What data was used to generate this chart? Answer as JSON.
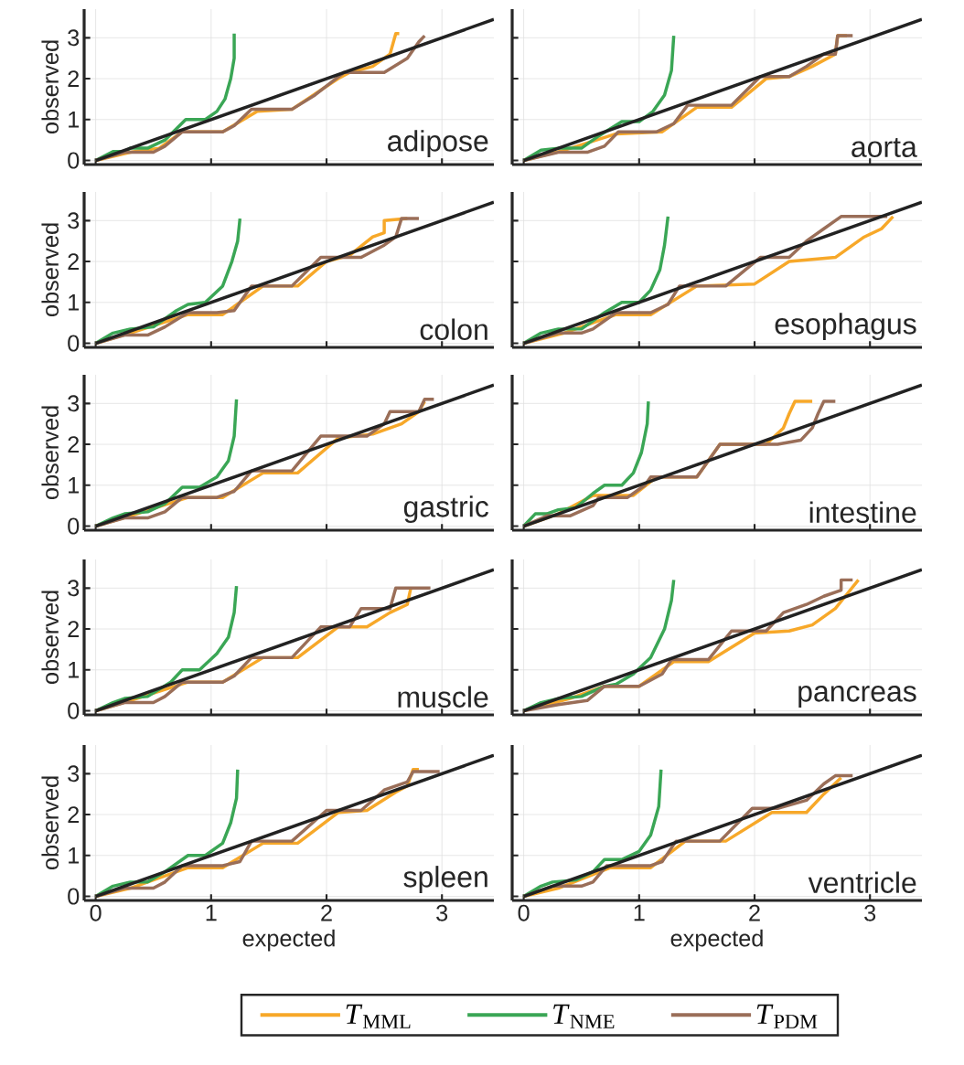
{
  "chart_data": [
    {
      "type": "line",
      "title": "adipose",
      "ylabel": "observed",
      "xlim": [
        -0.1,
        3.45
      ],
      "ylim": [
        -0.1,
        3.7
      ],
      "xticks": [
        0,
        1,
        2,
        3
      ],
      "yticks": [
        0,
        1,
        2,
        3
      ],
      "grid": true,
      "tick_labels": "y",
      "series": [
        {
          "color": "#f7a829",
          "x": [
            0,
            0.3,
            0.55,
            0.75,
            1.1,
            1.4,
            1.7,
            2.1,
            2.2,
            2.4,
            2.55,
            2.6,
            2.63
          ],
          "values": [
            0,
            0.2,
            0.3,
            0.7,
            0.7,
            1.2,
            1.25,
            2.0,
            2.15,
            2.3,
            2.6,
            3.1,
            3.1
          ]
        },
        {
          "color": "#3aa655",
          "x": [
            0,
            0.15,
            0.25,
            0.3,
            0.45,
            0.6,
            0.78,
            0.95,
            1.05,
            1.12,
            1.17,
            1.2,
            1.2
          ],
          "values": [
            0,
            0.22,
            0.22,
            0.3,
            0.3,
            0.5,
            1.0,
            1.0,
            1.2,
            1.5,
            2.0,
            2.5,
            3.1
          ]
        },
        {
          "color": "#9a6e58",
          "x": [
            0,
            0.25,
            0.5,
            0.6,
            0.75,
            1.1,
            1.2,
            1.35,
            1.7,
            1.9,
            2.15,
            2.5,
            2.7,
            2.8,
            2.85
          ],
          "values": [
            0,
            0.2,
            0.2,
            0.35,
            0.7,
            0.7,
            0.85,
            1.25,
            1.25,
            1.6,
            2.15,
            2.15,
            2.5,
            2.9,
            3.05
          ]
        },
        {
          "type": "line",
          "color": "#222222",
          "x": [
            0,
            3.45
          ],
          "values": [
            0,
            3.45
          ]
        }
      ]
    },
    {
      "type": "line",
      "title": "aorta",
      "xlim": [
        -0.1,
        3.45
      ],
      "ylim": [
        -0.1,
        3.7
      ],
      "xticks": [
        0,
        1,
        2,
        3
      ],
      "yticks": [
        0,
        1,
        2,
        3
      ],
      "grid": true,
      "tick_labels": false,
      "series": [
        {
          "color": "#f7a829",
          "x": [
            0,
            0.35,
            0.8,
            1.2,
            1.5,
            1.8,
            2.1,
            2.3,
            2.5,
            2.7,
            2.72,
            2.8
          ],
          "values": [
            0,
            0.25,
            0.65,
            0.7,
            1.3,
            1.3,
            2.0,
            2.05,
            2.3,
            2.6,
            3.05,
            3.05
          ]
        },
        {
          "color": "#3aa655",
          "x": [
            0,
            0.15,
            0.3,
            0.5,
            0.65,
            0.85,
            1.0,
            1.12,
            1.22,
            1.28,
            1.3
          ],
          "values": [
            0,
            0.25,
            0.3,
            0.3,
            0.6,
            0.95,
            0.95,
            1.2,
            1.6,
            2.2,
            3.05
          ]
        },
        {
          "color": "#9a6e58",
          "x": [
            0,
            0.3,
            0.55,
            0.7,
            0.82,
            1.15,
            1.3,
            1.42,
            1.8,
            2.05,
            2.3,
            2.45,
            2.6,
            2.7,
            2.72,
            2.85
          ],
          "values": [
            0,
            0.2,
            0.2,
            0.35,
            0.7,
            0.7,
            0.9,
            1.35,
            1.35,
            2.05,
            2.05,
            2.3,
            2.6,
            2.6,
            3.05,
            3.05
          ]
        },
        {
          "type": "line",
          "color": "#222222",
          "x": [
            0,
            3.45
          ],
          "values": [
            0,
            3.45
          ]
        }
      ]
    },
    {
      "type": "line",
      "title": "colon",
      "ylabel": "observed",
      "xlim": [
        -0.1,
        3.45
      ],
      "ylim": [
        -0.1,
        3.7
      ],
      "xticks": [
        0,
        1,
        2,
        3
      ],
      "yticks": [
        0,
        1,
        2,
        3
      ],
      "grid": true,
      "tick_labels": "y",
      "series": [
        {
          "color": "#f7a829",
          "x": [
            0,
            0.3,
            0.8,
            1.1,
            1.45,
            1.75,
            2.0,
            2.2,
            2.4,
            2.5,
            2.5,
            2.7
          ],
          "values": [
            0,
            0.25,
            0.7,
            0.7,
            1.4,
            1.4,
            2.0,
            2.15,
            2.6,
            2.7,
            3.0,
            3.05
          ]
        },
        {
          "color": "#3aa655",
          "x": [
            0,
            0.15,
            0.3,
            0.5,
            0.7,
            0.8,
            0.95,
            1.1,
            1.18,
            1.23,
            1.25
          ],
          "values": [
            0,
            0.25,
            0.35,
            0.4,
            0.8,
            0.95,
            1.0,
            1.4,
            2.0,
            2.5,
            3.05
          ]
        },
        {
          "color": "#9a6e58",
          "x": [
            0,
            0.25,
            0.45,
            0.6,
            0.8,
            1.05,
            1.2,
            1.35,
            1.7,
            1.95,
            2.3,
            2.5,
            2.6,
            2.65,
            2.8
          ],
          "values": [
            0,
            0.2,
            0.2,
            0.4,
            0.75,
            0.75,
            0.8,
            1.4,
            1.4,
            2.1,
            2.1,
            2.4,
            2.6,
            3.05,
            3.05
          ]
        },
        {
          "type": "line",
          "color": "#222222",
          "x": [
            0,
            3.45
          ],
          "values": [
            0,
            3.45
          ]
        }
      ]
    },
    {
      "type": "line",
      "title": "esophagus",
      "xlim": [
        -0.1,
        3.45
      ],
      "ylim": [
        -0.1,
        3.7
      ],
      "xticks": [
        0,
        1,
        2,
        3
      ],
      "yticks": [
        0,
        1,
        2,
        3
      ],
      "grid": true,
      "tick_labels": false,
      "series": [
        {
          "color": "#f7a829",
          "x": [
            0,
            0.35,
            0.8,
            1.1,
            1.5,
            2.0,
            2.3,
            2.7,
            2.95,
            3.1,
            3.2
          ],
          "values": [
            0,
            0.25,
            0.7,
            0.7,
            1.4,
            1.45,
            2.0,
            2.1,
            2.6,
            2.8,
            3.1
          ]
        },
        {
          "color": "#3aa655",
          "x": [
            0,
            0.15,
            0.3,
            0.5,
            0.7,
            0.85,
            1.0,
            1.1,
            1.18,
            1.22,
            1.25
          ],
          "values": [
            0,
            0.25,
            0.35,
            0.35,
            0.75,
            1.0,
            1.0,
            1.3,
            1.8,
            2.4,
            3.1
          ]
        },
        {
          "color": "#9a6e58",
          "x": [
            0,
            0.3,
            0.5,
            0.6,
            0.8,
            1.1,
            1.25,
            1.35,
            1.75,
            2.05,
            2.3,
            2.45,
            2.6,
            2.75,
            3.15
          ],
          "values": [
            0,
            0.25,
            0.25,
            0.35,
            0.75,
            0.75,
            0.95,
            1.4,
            1.4,
            2.1,
            2.1,
            2.5,
            2.8,
            3.1,
            3.1
          ]
        },
        {
          "type": "line",
          "color": "#222222",
          "x": [
            0,
            3.45
          ],
          "values": [
            0,
            3.45
          ]
        }
      ]
    },
    {
      "type": "line",
      "title": "gastric",
      "ylabel": "observed",
      "xlim": [
        -0.1,
        3.45
      ],
      "ylim": [
        -0.1,
        3.7
      ],
      "xticks": [
        0,
        1,
        2,
        3
      ],
      "yticks": [
        0,
        1,
        2,
        3
      ],
      "grid": true,
      "tick_labels": "y",
      "series": [
        {
          "color": "#f7a829",
          "x": [
            0,
            0.3,
            0.8,
            1.1,
            1.45,
            1.75,
            2.1,
            2.4,
            2.65,
            2.8,
            2.85
          ],
          "values": [
            0,
            0.25,
            0.7,
            0.7,
            1.3,
            1.3,
            2.15,
            2.25,
            2.5,
            2.8,
            3.05
          ]
        },
        {
          "color": "#3aa655",
          "x": [
            0,
            0.15,
            0.25,
            0.45,
            0.6,
            0.75,
            0.9,
            1.05,
            1.15,
            1.2,
            1.22
          ],
          "values": [
            0,
            0.2,
            0.3,
            0.35,
            0.55,
            0.95,
            0.95,
            1.2,
            1.6,
            2.2,
            3.1
          ]
        },
        {
          "color": "#9a6e58",
          "x": [
            0,
            0.25,
            0.45,
            0.6,
            0.75,
            1.05,
            1.2,
            1.35,
            1.7,
            1.95,
            2.35,
            2.5,
            2.55,
            2.8,
            2.85,
            2.93
          ],
          "values": [
            0,
            0.2,
            0.2,
            0.35,
            0.7,
            0.7,
            0.85,
            1.35,
            1.35,
            2.2,
            2.2,
            2.5,
            2.8,
            2.8,
            3.1,
            3.1
          ]
        },
        {
          "type": "line",
          "color": "#222222",
          "x": [
            0,
            3.45
          ],
          "values": [
            0,
            3.45
          ]
        }
      ]
    },
    {
      "type": "line",
      "title": "intestine",
      "xlim": [
        -0.1,
        3.45
      ],
      "ylim": [
        -0.1,
        3.7
      ],
      "xticks": [
        0,
        1,
        2,
        3
      ],
      "yticks": [
        0,
        1,
        2,
        3
      ],
      "grid": true,
      "tick_labels": false,
      "series": [
        {
          "color": "#f7a829",
          "x": [
            0,
            0.3,
            0.6,
            0.95,
            1.15,
            1.5,
            1.7,
            2.1,
            2.25,
            2.3,
            2.35,
            2.5
          ],
          "values": [
            0,
            0.3,
            0.75,
            0.75,
            1.2,
            1.2,
            2.0,
            2.0,
            2.4,
            2.75,
            3.05,
            3.05
          ]
        },
        {
          "color": "#3aa655",
          "x": [
            0,
            0.1,
            0.2,
            0.3,
            0.45,
            0.6,
            0.7,
            0.85,
            0.95,
            1.02,
            1.07,
            1.08
          ],
          "values": [
            0,
            0.3,
            0.3,
            0.4,
            0.45,
            0.8,
            1.0,
            1.0,
            1.3,
            1.8,
            2.5,
            3.05
          ]
        },
        {
          "color": "#9a6e58",
          "x": [
            0,
            0.2,
            0.4,
            0.6,
            0.65,
            0.9,
            1.05,
            1.1,
            1.5,
            1.7,
            2.2,
            2.4,
            2.5,
            2.55,
            2.6,
            2.7
          ],
          "values": [
            0,
            0.25,
            0.25,
            0.5,
            0.7,
            0.7,
            1.0,
            1.2,
            1.2,
            2.0,
            2.0,
            2.1,
            2.4,
            2.75,
            3.05,
            3.05
          ]
        },
        {
          "type": "line",
          "color": "#222222",
          "x": [
            0,
            3.45
          ],
          "values": [
            0,
            3.45
          ]
        }
      ]
    },
    {
      "type": "line",
      "title": "muscle",
      "ylabel": "observed",
      "xlim": [
        -0.1,
        3.45
      ],
      "ylim": [
        -0.1,
        3.7
      ],
      "xticks": [
        0,
        1,
        2,
        3
      ],
      "yticks": [
        0,
        1,
        2,
        3
      ],
      "grid": true,
      "tick_labels": "y",
      "series": [
        {
          "color": "#f7a829",
          "x": [
            0,
            0.3,
            0.8,
            1.1,
            1.45,
            1.75,
            2.1,
            2.35,
            2.55,
            2.7,
            2.73
          ],
          "values": [
            0,
            0.25,
            0.7,
            0.7,
            1.3,
            1.3,
            2.05,
            2.05,
            2.4,
            2.6,
            3.0
          ]
        },
        {
          "color": "#3aa655",
          "x": [
            0,
            0.15,
            0.25,
            0.45,
            0.65,
            0.75,
            0.9,
            1.05,
            1.15,
            1.2,
            1.22
          ],
          "values": [
            0,
            0.2,
            0.3,
            0.35,
            0.7,
            1.0,
            1.0,
            1.4,
            1.8,
            2.4,
            3.05
          ]
        },
        {
          "color": "#9a6e58",
          "x": [
            0,
            0.25,
            0.5,
            0.6,
            0.75,
            1.1,
            1.2,
            1.35,
            1.7,
            1.95,
            2.2,
            2.3,
            2.55,
            2.6,
            2.9
          ],
          "values": [
            0,
            0.2,
            0.2,
            0.35,
            0.7,
            0.7,
            0.85,
            1.3,
            1.3,
            2.05,
            2.05,
            2.5,
            2.5,
            3.0,
            3.0
          ]
        },
        {
          "type": "line",
          "color": "#222222",
          "x": [
            0,
            3.45
          ],
          "values": [
            0,
            3.45
          ]
        }
      ]
    },
    {
      "type": "line",
      "title": "pancreas",
      "xlim": [
        -0.1,
        3.45
      ],
      "ylim": [
        -0.1,
        3.7
      ],
      "xticks": [
        0,
        1,
        2,
        3
      ],
      "yticks": [
        0,
        1,
        2,
        3
      ],
      "grid": true,
      "tick_labels": false,
      "series": [
        {
          "color": "#f7a829",
          "x": [
            0,
            0.4,
            0.7,
            1.0,
            1.3,
            1.6,
            2.0,
            2.3,
            2.5,
            2.7,
            2.8,
            2.9
          ],
          "values": [
            0,
            0.3,
            0.6,
            0.6,
            1.2,
            1.2,
            1.9,
            1.95,
            2.1,
            2.5,
            2.85,
            3.2
          ]
        },
        {
          "color": "#3aa655",
          "x": [
            0,
            0.15,
            0.3,
            0.5,
            0.7,
            0.8,
            0.95,
            1.1,
            1.22,
            1.28,
            1.3
          ],
          "values": [
            0,
            0.2,
            0.3,
            0.35,
            0.6,
            0.65,
            0.9,
            1.3,
            2.0,
            2.7,
            3.2
          ]
        },
        {
          "color": "#9a6e58",
          "x": [
            0,
            0.3,
            0.55,
            0.7,
            1.0,
            1.2,
            1.28,
            1.6,
            1.8,
            2.1,
            2.25,
            2.45,
            2.6,
            2.75,
            2.75,
            2.85
          ],
          "values": [
            0,
            0.15,
            0.25,
            0.6,
            0.6,
            0.9,
            1.25,
            1.25,
            1.95,
            1.95,
            2.4,
            2.6,
            2.8,
            2.95,
            3.2,
            3.2
          ]
        },
        {
          "type": "line",
          "color": "#222222",
          "x": [
            0,
            3.45
          ],
          "values": [
            0,
            3.45
          ]
        }
      ]
    },
    {
      "type": "line",
      "title": "spleen",
      "xlabel": "expected",
      "ylabel": "observed",
      "xlim": [
        -0.1,
        3.45
      ],
      "ylim": [
        -0.1,
        3.7
      ],
      "xticks": [
        0,
        1,
        2,
        3
      ],
      "yticks": [
        0,
        1,
        2,
        3
      ],
      "grid": true,
      "series": [
        {
          "color": "#f7a829",
          "x": [
            0,
            0.3,
            0.8,
            1.1,
            1.45,
            1.75,
            2.1,
            2.35,
            2.6,
            2.7,
            2.75,
            2.8
          ],
          "values": [
            0,
            0.2,
            0.7,
            0.7,
            1.3,
            1.3,
            2.05,
            2.1,
            2.55,
            2.7,
            3.1,
            3.1
          ]
        },
        {
          "color": "#3aa655",
          "x": [
            0,
            0.15,
            0.3,
            0.45,
            0.6,
            0.8,
            0.95,
            1.1,
            1.17,
            1.22,
            1.23
          ],
          "values": [
            0,
            0.25,
            0.35,
            0.35,
            0.6,
            1.0,
            1.0,
            1.3,
            1.8,
            2.4,
            3.1
          ]
        },
        {
          "color": "#9a6e58",
          "x": [
            0,
            0.25,
            0.5,
            0.6,
            0.75,
            1.1,
            1.25,
            1.35,
            1.7,
            2.0,
            2.3,
            2.5,
            2.7,
            2.75,
            2.98
          ],
          "values": [
            0,
            0.2,
            0.2,
            0.35,
            0.75,
            0.75,
            0.85,
            1.35,
            1.35,
            2.1,
            2.1,
            2.6,
            2.8,
            3.05,
            3.05
          ]
        },
        {
          "type": "line",
          "color": "#222222",
          "x": [
            0,
            3.45
          ],
          "values": [
            0,
            3.45
          ]
        }
      ]
    },
    {
      "type": "line",
      "title": "ventricle",
      "xlabel": "expected",
      "xlim": [
        -0.1,
        3.45
      ],
      "ylim": [
        -0.1,
        3.7
      ],
      "xticks": [
        0,
        1,
        2,
        3
      ],
      "yticks": [
        0,
        1,
        2,
        3
      ],
      "grid": true,
      "tick_labels": "x",
      "legend": "bottom",
      "series": [
        {
          "name": "*T*$_{MML}$",
          "color": "#f7a829",
          "x": [
            0,
            0.3,
            0.75,
            1.1,
            1.4,
            1.75,
            2.15,
            2.45,
            2.6,
            2.75
          ],
          "values": [
            0,
            0.2,
            0.7,
            0.7,
            1.35,
            1.35,
            2.05,
            2.05,
            2.5,
            2.9
          ]
        },
        {
          "name": "*T*$_{NME}$",
          "color": "#3aa655",
          "x": [
            0,
            0.15,
            0.25,
            0.45,
            0.6,
            0.7,
            0.85,
            1.0,
            1.1,
            1.17,
            1.19
          ],
          "values": [
            0,
            0.25,
            0.35,
            0.4,
            0.6,
            0.9,
            0.9,
            1.1,
            1.5,
            2.2,
            3.1
          ]
        },
        {
          "name": "*T*$_{PDM}$",
          "color": "#9a6e58",
          "x": [
            0,
            0.25,
            0.5,
            0.6,
            0.72,
            1.1,
            1.2,
            1.32,
            1.7,
            1.98,
            2.2,
            2.45,
            2.6,
            2.7,
            2.85
          ],
          "values": [
            0,
            0.25,
            0.25,
            0.35,
            0.75,
            0.75,
            0.85,
            1.35,
            1.35,
            2.15,
            2.15,
            2.35,
            2.75,
            2.95,
            2.95
          ]
        },
        {
          "type": "line",
          "color": "#222222",
          "x": [
            0,
            3.45
          ],
          "values": [
            0,
            3.45
          ]
        }
      ]
    }
  ]
}
